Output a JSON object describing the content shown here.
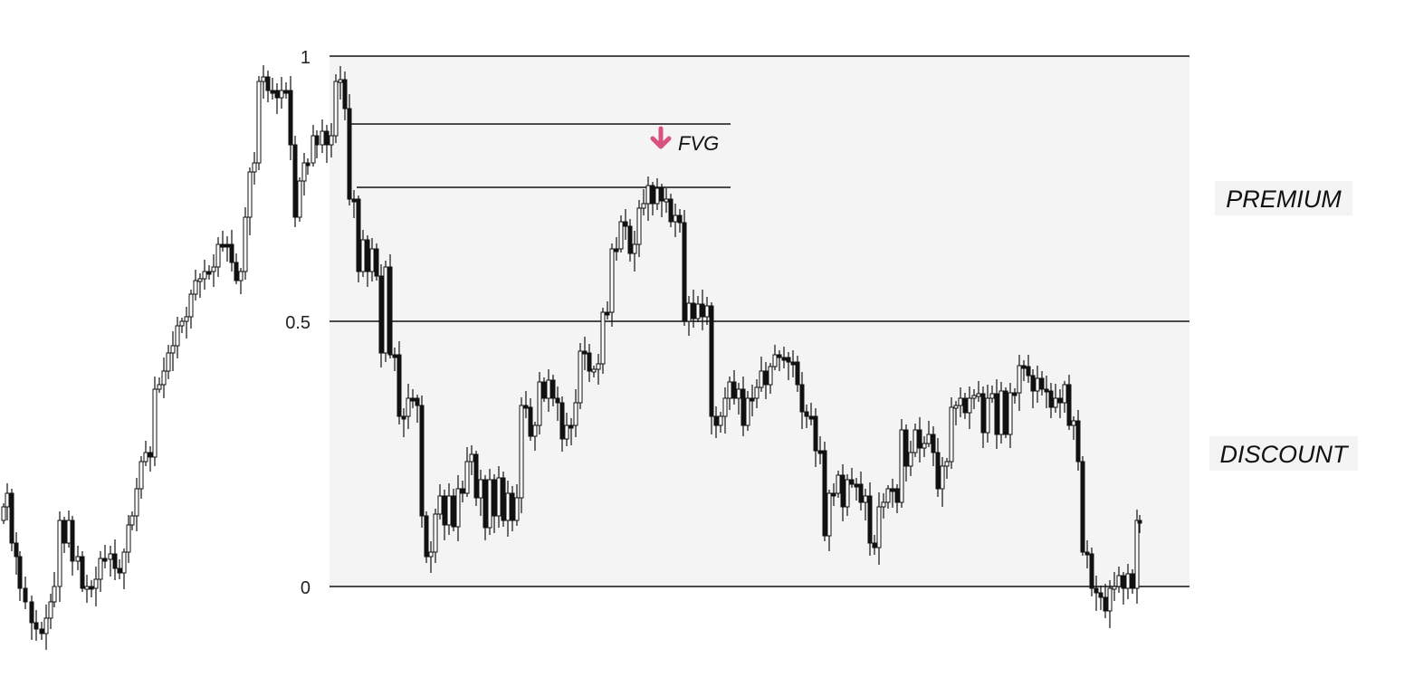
{
  "chart_data": {
    "type": "candlestick",
    "title": "",
    "levels": [
      {
        "value": 1,
        "label": "1"
      },
      {
        "value": 0.5,
        "label": "0.5"
      },
      {
        "value": 0,
        "label": "0"
      }
    ],
    "zones": [
      {
        "name": "premium",
        "label": "PREMIUM"
      },
      {
        "name": "discount",
        "label": "DISCOUNT"
      }
    ],
    "fvg": {
      "label": "FVG",
      "top": 0.872,
      "bottom": 0.751,
      "direction": "down",
      "color": "#d9527f"
    },
    "colors": {
      "bullish": "#ffffff",
      "bearish": "#111111",
      "zone_fill": "#f4f4f4",
      "line": "#111111"
    }
  }
}
